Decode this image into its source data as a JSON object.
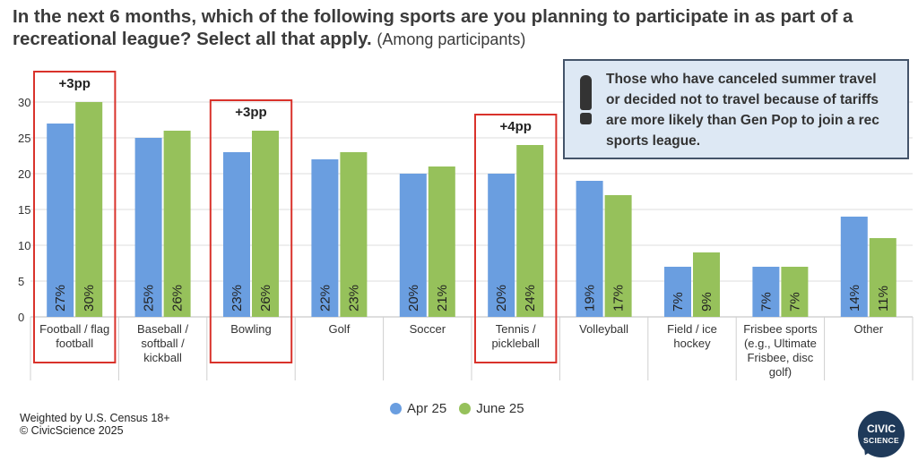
{
  "title": {
    "main": "In the next 6 months, which of the following sports are you planning to participate in as part of a recreational league? Select all that apply.",
    "sub": "(Among participants)"
  },
  "callout": {
    "text": "Those who have canceled summer travel or decided not to travel because of tariffs are more likely than Gen Pop to join a rec sports league."
  },
  "footnote": {
    "line1": "Weighted by U.S. Census 18+",
    "line2": "© CivicScience 2025"
  },
  "logo": {
    "line1": "CIVIC",
    "line2": "SCIENCE"
  },
  "colors": {
    "apr": "#6a9ee0",
    "jun": "#96c15b",
    "highlight": "#d9322b"
  },
  "chart_data": {
    "type": "bar",
    "categories": [
      [
        "Football / flag",
        "football"
      ],
      [
        "Baseball /",
        "softball /",
        "kickball"
      ],
      [
        "Bowling"
      ],
      [
        "Golf"
      ],
      [
        "Soccer"
      ],
      [
        "Tennis /",
        "pickleball"
      ],
      [
        "Volleyball"
      ],
      [
        "Field / ice",
        "hockey"
      ],
      [
        "Frisbee sports",
        "(e.g., Ultimate",
        "Frisbee, disc",
        "golf)"
      ],
      [
        "Other"
      ]
    ],
    "series": [
      {
        "name": "Apr 25",
        "values": [
          27,
          25,
          23,
          22,
          20,
          20,
          19,
          7,
          7,
          14
        ],
        "labels": [
          "27%",
          "25%",
          "23%",
          "22%",
          "20%",
          "20%",
          "19%",
          "7%",
          "7%",
          "14%"
        ]
      },
      {
        "name": "June 25",
        "values": [
          30,
          26,
          26,
          23,
          21,
          24,
          17,
          9,
          7,
          11
        ],
        "labels": [
          "30%",
          "26%",
          "26%",
          "23%",
          "21%",
          "24%",
          "17%",
          "9%",
          "7%",
          "11%"
        ]
      }
    ],
    "yticks": [
      0,
      5,
      10,
      15,
      20,
      25,
      30
    ],
    "ylim": [
      0,
      30
    ],
    "grid": true,
    "highlights": [
      {
        "category_index": 0,
        "label": "+3pp"
      },
      {
        "category_index": 2,
        "label": "+3pp"
      },
      {
        "category_index": 5,
        "label": "+4pp"
      }
    ],
    "legend": "bottom-center"
  }
}
